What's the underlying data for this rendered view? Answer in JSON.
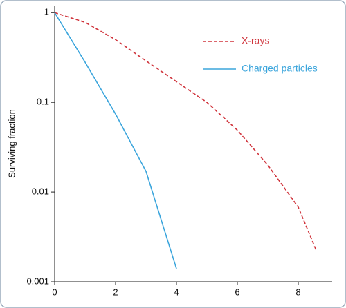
{
  "chart_data": {
    "type": "line",
    "ylabel": "Surviving fraction",
    "log_y": true,
    "xlim": [
      0,
      9
    ],
    "xticks": [
      0,
      2,
      4,
      6,
      8
    ],
    "ylim": [
      0.001,
      1.2
    ],
    "yticks": [
      0.001,
      0.01,
      0.1,
      1
    ],
    "legend": "upper right",
    "series": [
      {
        "name": "X-rays",
        "color": "#d0343c",
        "style": "dashed",
        "x": [
          0,
          1,
          2,
          3,
          4,
          5,
          6,
          7,
          8,
          8.6
        ],
        "values": [
          1,
          0.78,
          0.5,
          0.29,
          0.17,
          0.1,
          0.049,
          0.02,
          0.0068,
          0.0022
        ]
      },
      {
        "name": "Charged particles",
        "color": "#3ba5dc",
        "style": "solid",
        "x": [
          0,
          1,
          2,
          3,
          4
        ],
        "values": [
          1,
          0.28,
          0.074,
          0.017,
          0.0014
        ]
      }
    ]
  }
}
